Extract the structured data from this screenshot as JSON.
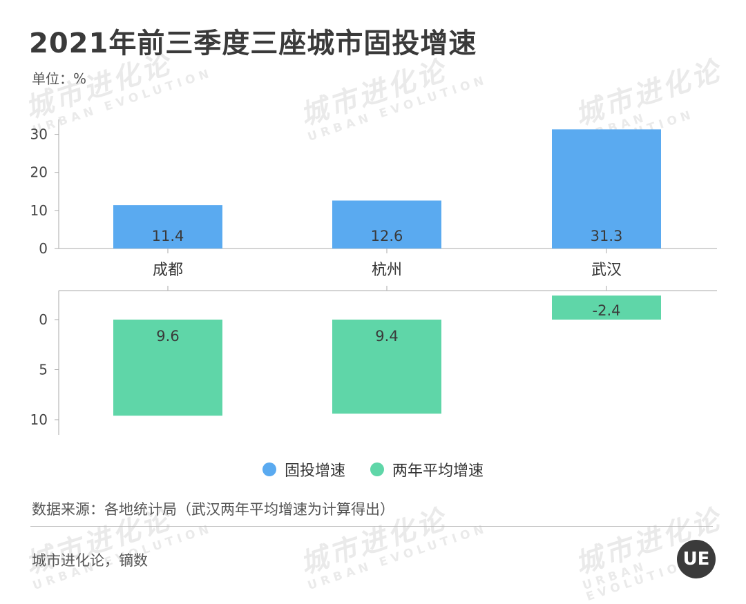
{
  "title": "2021年前三季度三座城市固投增速",
  "unit": "单位：%",
  "source": "数据来源：各地统计局（武汉两年平均增速为计算得出）",
  "credit": "城市进化论，镝数",
  "watermark": {
    "cn": "城市进化论",
    "en": "URBAN EVOLUTION"
  },
  "logo": {
    "text": "UE"
  },
  "colors": {
    "fixed_investment": "#5aaaf0",
    "two_year_avg": "#5fd6a8"
  },
  "chart_data": [
    {
      "type": "bar",
      "categories": [
        "成都",
        "杭州",
        "武汉"
      ],
      "series": [
        {
          "name": "固投增速",
          "values": [
            11.4,
            12.6,
            31.3
          ],
          "labels": [
            "11.4",
            "12.6",
            "31.3"
          ]
        }
      ],
      "ylim": [
        0,
        33
      ],
      "yticks": [
        "0",
        "10",
        "20",
        "30"
      ],
      "ytick_values": [
        0,
        10,
        20,
        30
      ],
      "inverted": false
    },
    {
      "type": "bar",
      "categories": [
        "成都",
        "杭州",
        "武汉"
      ],
      "series": [
        {
          "name": "两年平均增速",
          "values": [
            9.6,
            9.4,
            -2.4
          ],
          "labels": [
            "9.6",
            "9.4",
            "-2.4"
          ]
        }
      ],
      "ylim": [
        -2.4,
        11.2
      ],
      "yticks": [
        "0",
        "5",
        "10"
      ],
      "ytick_values": [
        0,
        5,
        10
      ],
      "inverted": true
    }
  ],
  "legend": [
    {
      "label": "固投增速",
      "color": "#5aaaf0"
    },
    {
      "label": "两年平均增速",
      "color": "#5fd6a8"
    }
  ]
}
